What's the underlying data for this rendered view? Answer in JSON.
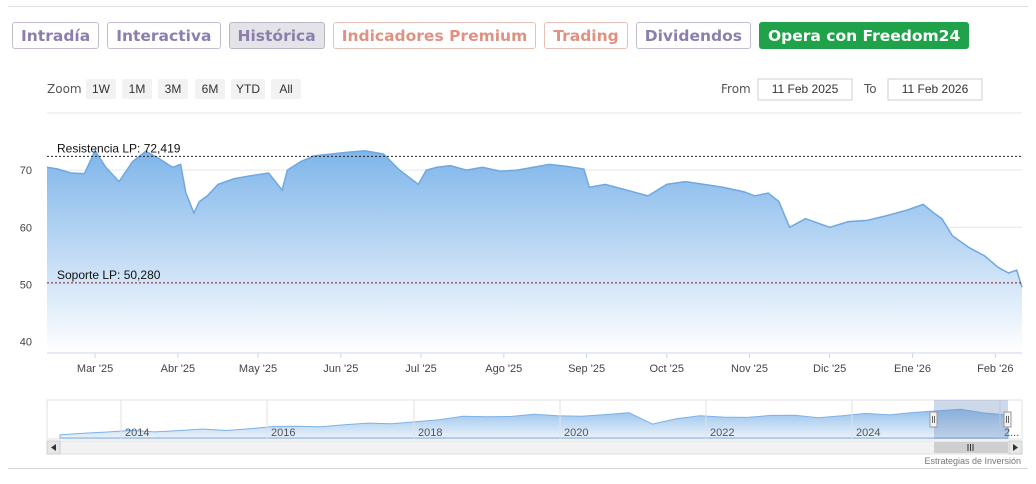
{
  "tabs": [
    {
      "label": "Intradía",
      "style": "purple"
    },
    {
      "label": "Interactiva",
      "style": "purple"
    },
    {
      "label": "Histórica",
      "style": "active"
    },
    {
      "label": "Indicadores Premium",
      "style": "red"
    },
    {
      "label": "Trading",
      "style": "red"
    },
    {
      "label": "Dividendos",
      "style": "purple"
    },
    {
      "label": "Opera con Freedom24",
      "style": "green"
    }
  ],
  "zoom": {
    "label": "Zoom",
    "buttons": [
      "1W",
      "1M",
      "3M",
      "6M",
      "YTD",
      "All"
    ]
  },
  "range": {
    "from_label": "From",
    "from_value": "11 Feb 2025",
    "to_label": "To",
    "to_value": "11 Feb 2026"
  },
  "credit": "Estrategias de Inversión",
  "colors": {
    "area_top": "#7fb5ea",
    "area_bottom": "#ffffff",
    "line": "#6fa8e0",
    "tab_green": "#1fa24a"
  },
  "chart_data": {
    "type": "area",
    "y_ticks": [
      40,
      50,
      60,
      70
    ],
    "ylim": [
      38,
      80
    ],
    "x_ticks": [
      "Mar '25",
      "Abr '25",
      "May '25",
      "Jun '25",
      "Jul '25",
      "Ago '25",
      "Sep '25",
      "Oct '25",
      "Nov '25",
      "Dic '25",
      "Ene '26",
      "Feb '26"
    ],
    "xlim": [
      "2025-02-11",
      "2026-02-11"
    ],
    "reference_lines": [
      {
        "label": "Resistencia LP: 72,419",
        "value": 72.419
      },
      {
        "label": "Soporte LP: 50,280",
        "value": 50.28
      }
    ],
    "series": [
      {
        "x": [
          "2025-02-11",
          "2025-02-15",
          "2025-02-20",
          "2025-02-25",
          "2025-03-01",
          "2025-03-05",
          "2025-03-10",
          "2025-03-15",
          "2025-03-20",
          "2025-03-25",
          "2025-03-30",
          "2025-04-02",
          "2025-04-04",
          "2025-04-07",
          "2025-04-09",
          "2025-04-12",
          "2025-04-16",
          "2025-04-22",
          "2025-04-28",
          "2025-05-05",
          "2025-05-10",
          "2025-05-12",
          "2025-05-17",
          "2025-05-22",
          "2025-05-28",
          "2025-06-03",
          "2025-06-10",
          "2025-06-17",
          "2025-06-23",
          "2025-06-30",
          "2025-07-03",
          "2025-07-07",
          "2025-07-12",
          "2025-07-18",
          "2025-07-24",
          "2025-07-31",
          "2025-08-06",
          "2025-08-12",
          "2025-08-18",
          "2025-08-24",
          "2025-08-31",
          "2025-09-02",
          "2025-09-08",
          "2025-09-16",
          "2025-09-24",
          "2025-10-01",
          "2025-10-08",
          "2025-10-15",
          "2025-10-22",
          "2025-10-30",
          "2025-11-03",
          "2025-11-08",
          "2025-11-12",
          "2025-11-16",
          "2025-11-22",
          "2025-12-01",
          "2025-12-08",
          "2025-12-15",
          "2025-12-22",
          "2025-12-30",
          "2026-01-05",
          "2026-01-09",
          "2026-01-12",
          "2026-01-16",
          "2026-01-22",
          "2026-01-28",
          "2026-02-02",
          "2026-02-06",
          "2026-02-09",
          "2026-02-11"
        ],
        "values": [
          70.5,
          70.2,
          69.5,
          69.4,
          73.4,
          70.5,
          68.0,
          71.5,
          73.3,
          72.0,
          70.5,
          71.0,
          66.0,
          62.5,
          64.5,
          65.5,
          67.5,
          68.5,
          69.0,
          69.5,
          66.5,
          70.0,
          71.5,
          72.5,
          72.8,
          73.1,
          73.4,
          72.8,
          70.0,
          67.5,
          70.0,
          70.5,
          70.8,
          70.0,
          70.5,
          69.8,
          70.0,
          70.5,
          71.0,
          70.7,
          70.2,
          67.0,
          67.5,
          66.5,
          65.5,
          67.5,
          68.0,
          67.5,
          67.0,
          66.2,
          65.5,
          66.0,
          64.5,
          60.0,
          61.5,
          60.0,
          61.0,
          61.2,
          62.0,
          63.0,
          64.0,
          62.5,
          61.5,
          58.5,
          56.5,
          55.0,
          53.0,
          52.0,
          52.5,
          49.5
        ]
      }
    ],
    "navigator": {
      "x_ticks": [
        "2014",
        "2016",
        "2018",
        "2020",
        "2022",
        "2024",
        "2..."
      ]
    }
  }
}
